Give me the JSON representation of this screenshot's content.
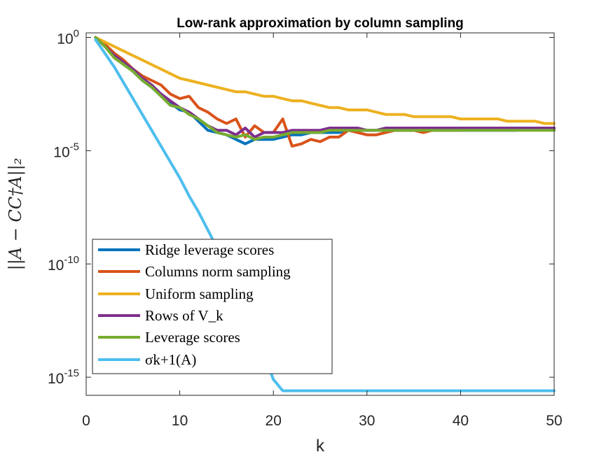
{
  "chart_data": {
    "type": "line",
    "title": "Low-rank approximation by column sampling",
    "xlabel": "k",
    "ylabel": "||A − CC†A||₂",
    "xlim": [
      0,
      50
    ],
    "ylim_log10": [
      -15.8,
      0.2
    ],
    "yscale": "log",
    "xticks": [
      "0",
      "10",
      "20",
      "30",
      "40",
      "50"
    ],
    "ytick_labels": [
      {
        "value": 0,
        "base": "10",
        "exp": "0"
      },
      {
        "value": -5,
        "base": "10",
        "exp": "-5"
      },
      {
        "value": -10,
        "base": "10",
        "exp": "-10"
      },
      {
        "value": -15,
        "base": "10",
        "exp": "-15"
      }
    ],
    "legend_position": "bottom-left",
    "x": [
      1,
      2,
      3,
      4,
      5,
      6,
      7,
      8,
      9,
      10,
      11,
      12,
      13,
      14,
      15,
      16,
      17,
      18,
      19,
      20,
      21,
      22,
      23,
      24,
      25,
      26,
      27,
      28,
      29,
      30,
      31,
      32,
      33,
      34,
      35,
      36,
      37,
      38,
      39,
      40,
      41,
      42,
      43,
      44,
      45,
      46,
      47,
      48,
      49,
      50
    ],
    "series": [
      {
        "name": "Ridge leverage scores",
        "color": "#0072bd",
        "log10_values": [
          0,
          -0.4,
          -0.8,
          -1.1,
          -1.5,
          -1.9,
          -2.2,
          -2.5,
          -2.9,
          -3.2,
          -3.3,
          -3.7,
          -4.1,
          -4.2,
          -4.3,
          -4.5,
          -4.7,
          -4.5,
          -4.5,
          -4.5,
          -4.4,
          -4.3,
          -4.3,
          -4.2,
          -4.2,
          -4.2,
          -4.2,
          -4.1,
          -4.1,
          -4.1,
          -4.1,
          -4.1,
          -4.1,
          -4.1,
          -4.1,
          -4.1,
          -4.1,
          -4.1,
          -4.1,
          -4.1,
          -4.1,
          -4.1,
          -4.1,
          -4.1,
          -4.1,
          -4.1,
          -4.0,
          -4.0,
          -4.0,
          -4.0
        ]
      },
      {
        "name": "Columns norm sampling",
        "color": "#d95319",
        "log10_values": [
          0,
          -0.3,
          -0.7,
          -1.0,
          -1.4,
          -1.7,
          -1.9,
          -2.1,
          -2.5,
          -2.7,
          -2.6,
          -3.1,
          -3.3,
          -3.6,
          -3.8,
          -3.6,
          -4.4,
          -3.9,
          -4.2,
          -4.2,
          -3.6,
          -4.8,
          -4.7,
          -4.5,
          -4.6,
          -4.4,
          -4.4,
          -4.1,
          -4.2,
          -4.3,
          -4.3,
          -4.2,
          -4.1,
          -4.1,
          -4.1,
          -4.2,
          -4.1,
          -4.1,
          -4.1,
          -4.1,
          -4.0,
          -4.0,
          -4.0,
          -4.1,
          -4.0,
          -4.0,
          -4.0,
          -4.0,
          -4.0,
          -4.0
        ]
      },
      {
        "name": "Uniform sampling",
        "color": "#edb120",
        "log10_values": [
          0,
          -0.2,
          -0.4,
          -0.6,
          -0.8,
          -1.0,
          -1.2,
          -1.4,
          -1.6,
          -1.8,
          -1.9,
          -2.0,
          -2.1,
          -2.2,
          -2.3,
          -2.4,
          -2.4,
          -2.5,
          -2.6,
          -2.6,
          -2.7,
          -2.8,
          -2.8,
          -2.9,
          -3.0,
          -3.1,
          -3.1,
          -3.2,
          -3.2,
          -3.2,
          -3.3,
          -3.4,
          -3.4,
          -3.4,
          -3.5,
          -3.5,
          -3.5,
          -3.5,
          -3.5,
          -3.6,
          -3.6,
          -3.6,
          -3.6,
          -3.6,
          -3.7,
          -3.7,
          -3.7,
          -3.7,
          -3.8,
          -3.8
        ]
      },
      {
        "name": "Rows of V_k",
        "color": "#7e2f8e",
        "log10_values": [
          0,
          -0.4,
          -0.8,
          -1.1,
          -1.4,
          -1.8,
          -2.1,
          -2.5,
          -2.8,
          -3.1,
          -3.3,
          -3.6,
          -3.9,
          -4.1,
          -4.1,
          -4.3,
          -4.0,
          -4.4,
          -4.2,
          -4.2,
          -4.2,
          -4.1,
          -4.1,
          -4.1,
          -4.1,
          -4.0,
          -4.0,
          -4.0,
          -4.0,
          -4.1,
          -4.1,
          -4.0,
          -4.0,
          -4.0,
          -4.0,
          -4.0,
          -4.0,
          -4.0,
          -4.0,
          -4.0,
          -4.0,
          -4.0,
          -4.0,
          -4.0,
          -4.0,
          -4.0,
          -4.0,
          -4.0,
          -4.0,
          -4.0
        ]
      },
      {
        "name": "Leverage scores",
        "color": "#77ac30",
        "log10_values": [
          0,
          -0.4,
          -0.9,
          -1.2,
          -1.5,
          -1.9,
          -2.2,
          -2.6,
          -3.0,
          -3.1,
          -3.4,
          -3.6,
          -3.9,
          -4.2,
          -4.3,
          -4.4,
          -4.3,
          -4.5,
          -4.4,
          -4.4,
          -4.3,
          -4.2,
          -4.2,
          -4.2,
          -4.2,
          -4.1,
          -4.1,
          -4.1,
          -4.1,
          -4.1,
          -4.1,
          -4.1,
          -4.1,
          -4.1,
          -4.1,
          -4.1,
          -4.1,
          -4.1,
          -4.1,
          -4.1,
          -4.1,
          -4.1,
          -4.1,
          -4.1,
          -4.1,
          -4.1,
          -4.1,
          -4.1,
          -4.1,
          -4.1
        ]
      },
      {
        "name": "σk+1(A)",
        "color": "#4dbeee",
        "log10_values": [
          -0.1,
          -0.7,
          -1.3,
          -2.0,
          -2.7,
          -3.4,
          -4.1,
          -4.8,
          -5.5,
          -6.2,
          -7.0,
          -7.7,
          -8.5,
          -9.3,
          -10.1,
          -11.0,
          -12.0,
          -13.0,
          -14.0,
          -15.1,
          -15.6,
          -15.6,
          -15.6,
          -15.6,
          -15.6,
          -15.6,
          -15.6,
          -15.6,
          -15.6,
          -15.6,
          -15.6,
          -15.6,
          -15.6,
          -15.6,
          -15.6,
          -15.6,
          -15.6,
          -15.6,
          -15.6,
          -15.6,
          -15.6,
          -15.6,
          -15.6,
          -15.6,
          -15.6,
          -15.6,
          -15.6,
          -15.6,
          -15.6,
          -15.6
        ]
      }
    ]
  }
}
